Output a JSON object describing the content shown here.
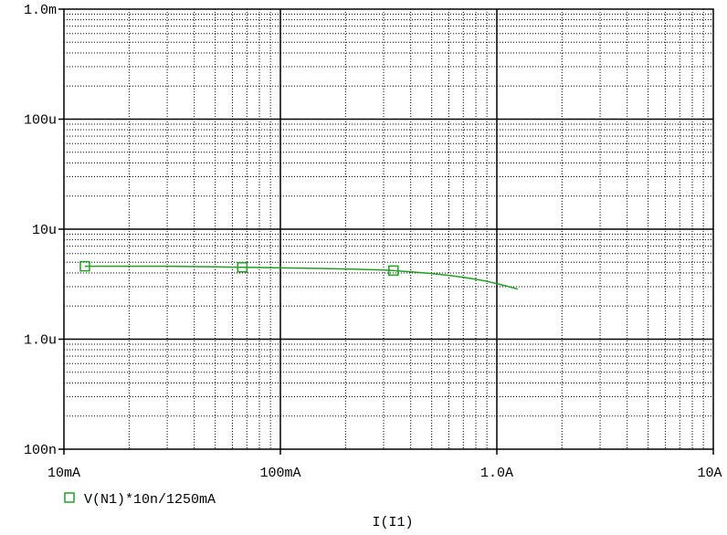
{
  "chart_data": {
    "type": "line",
    "x_scale": "log",
    "y_scale": "log",
    "xlim": [
      0.01,
      10
    ],
    "ylim": [
      1e-07,
      0.001
    ],
    "grid": true,
    "xlabel": "I(I1)",
    "ylabel": "",
    "title": "",
    "x_ticks": [
      {
        "value": 0.01,
        "label": "10mA"
      },
      {
        "value": 0.1,
        "label": "100mA"
      },
      {
        "value": 1,
        "label": "1.0A"
      },
      {
        "value": 10,
        "label": "10A"
      }
    ],
    "y_ticks": [
      {
        "value": 0.001,
        "label": "1.0m"
      },
      {
        "value": 0.0001,
        "label": "100u"
      },
      {
        "value": 1e-05,
        "label": "10u"
      },
      {
        "value": 1e-06,
        "label": "1.0u"
      },
      {
        "value": 1e-07,
        "label": "100n"
      }
    ],
    "legend_position": "bottom-left",
    "series": [
      {
        "name": "V(N1)*10n/1250mA",
        "color": "#22a022",
        "marker": "square",
        "x": [
          0.0125,
          0.02,
          0.03,
          0.05,
          0.0667,
          0.1,
          0.15,
          0.2,
          0.3,
          0.333,
          0.4,
          0.5,
          0.6,
          0.7,
          0.8,
          0.9,
          1.0,
          1.1,
          1.25
        ],
        "y": [
          4.6e-06,
          4.6e-06,
          4.6e-06,
          4.55e-06,
          4.5e-06,
          4.45e-06,
          4.4e-06,
          4.35e-06,
          4.25e-06,
          4.2e-06,
          4.1e-06,
          3.95e-06,
          3.8e-06,
          3.65e-06,
          3.5e-06,
          3.35e-06,
          3.2e-06,
          3.05e-06,
          2.85e-06
        ],
        "marker_x": [
          0.0125,
          0.0667,
          0.333
        ]
      }
    ]
  }
}
